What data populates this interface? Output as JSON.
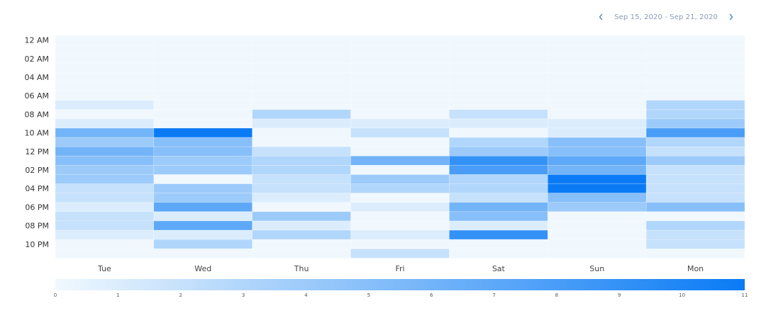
{
  "header": {
    "date_range": "Sep 15, 2020 - Sep 21, 2020",
    "prev_icon": "chevron-left-icon",
    "next_icon": "chevron-right-icon"
  },
  "colors": {
    "scale_min": "#f0f8fe",
    "scale_max": "#0a7bf5",
    "nav_icon": "#5b8fd6"
  },
  "chart_data": {
    "type": "heatmap",
    "x_categories": [
      "Tue",
      "Wed",
      "Thu",
      "Fri",
      "Sat",
      "Sun",
      "Mon"
    ],
    "y_categories": [
      "12 AM",
      "01 AM",
      "02 AM",
      "03 AM",
      "04 AM",
      "05 AM",
      "06 AM",
      "07 AM",
      "08 AM",
      "09 AM",
      "10 AM",
      "11 AM",
      "12 PM",
      "01 PM",
      "02 PM",
      "03 PM",
      "04 PM",
      "05 PM",
      "06 PM",
      "07 PM",
      "08 PM",
      "09 PM",
      "10 PM",
      "11 PM"
    ],
    "y_tick_labels": [
      "12 AM",
      "02 AM",
      "04 AM",
      "06 AM",
      "08 AM",
      "10 AM",
      "12 PM",
      "02 PM",
      "04 PM",
      "06 PM",
      "08 PM",
      "10 PM"
    ],
    "values": [
      [
        0,
        0,
        0,
        0,
        0,
        0,
        0
      ],
      [
        0,
        0,
        0,
        0,
        0,
        0,
        0
      ],
      [
        0,
        0,
        0,
        0,
        0,
        0,
        0
      ],
      [
        0,
        0,
        0,
        0,
        0,
        0,
        0
      ],
      [
        0,
        0,
        0,
        0,
        0,
        0,
        0
      ],
      [
        0,
        0,
        0,
        0,
        0,
        0,
        0
      ],
      [
        0,
        0,
        0,
        0,
        0,
        0,
        0
      ],
      [
        1,
        0,
        0,
        0,
        0,
        0,
        3
      ],
      [
        0,
        0,
        3,
        0,
        2,
        0,
        3
      ],
      [
        1,
        0,
        1,
        1,
        1,
        1,
        4
      ],
      [
        6,
        11,
        0,
        2,
        0,
        1,
        8
      ],
      [
        4,
        5,
        0,
        0,
        3,
        5,
        3
      ],
      [
        6,
        5,
        2,
        0,
        4,
        5,
        2
      ],
      [
        5,
        4,
        3,
        6,
        9,
        7,
        4
      ],
      [
        4,
        4,
        3,
        0,
        8,
        6,
        2
      ],
      [
        4,
        0,
        2,
        4,
        3,
        11,
        2
      ],
      [
        2,
        4,
        2,
        3,
        3,
        11,
        2
      ],
      [
        2,
        4,
        1,
        0,
        2,
        5,
        2
      ],
      [
        1,
        7,
        0,
        1,
        6,
        4,
        5
      ],
      [
        2,
        1,
        4,
        0,
        5,
        0,
        0
      ],
      [
        2,
        7,
        1,
        0,
        1,
        0,
        3
      ],
      [
        1,
        1,
        3,
        1,
        9,
        0,
        2
      ],
      [
        0,
        3,
        0,
        0,
        0,
        0,
        2
      ],
      [
        0,
        0,
        0,
        2,
        0,
        0,
        0
      ]
    ],
    "legend": {
      "min": 0,
      "max": 11,
      "ticks": [
        0,
        1,
        2,
        3,
        4,
        5,
        6,
        7,
        8,
        9,
        10,
        11
      ]
    }
  }
}
